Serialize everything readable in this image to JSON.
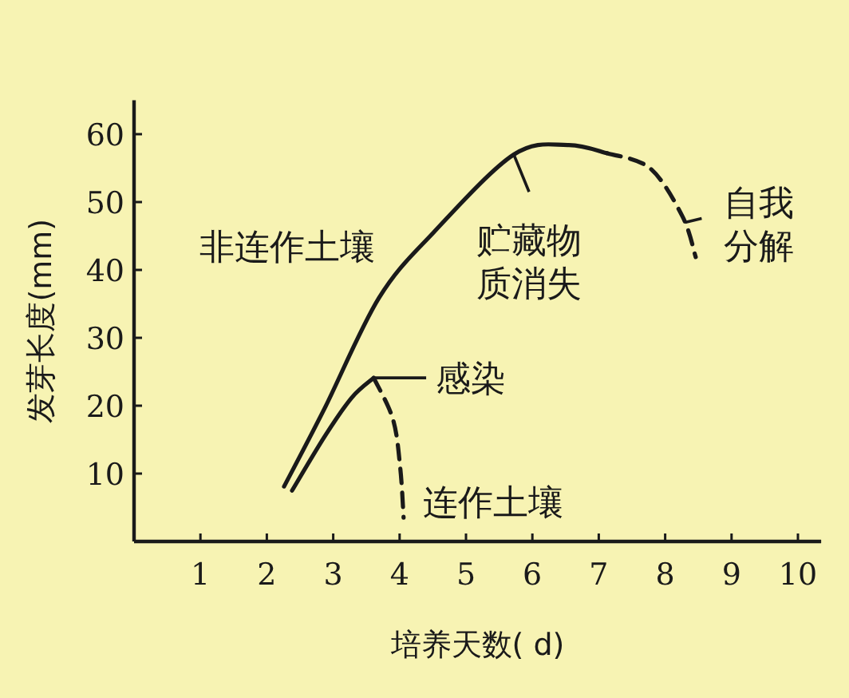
{
  "chart_data": {
    "type": "line",
    "xlabel": "培养天数( d)",
    "ylabel": "发芽长度(mm)",
    "xlim": [
      0,
      10.35
    ],
    "ylim": [
      0,
      65
    ],
    "xticks": [
      1,
      2,
      3,
      4,
      5,
      6,
      7,
      8,
      9,
      10
    ],
    "yticks": [
      10,
      20,
      30,
      40,
      50,
      60
    ],
    "grid": false,
    "series": [
      {
        "name": "非连作土壤",
        "color": "#1a1a1a",
        "line_style": "solid",
        "x": [
          2.26,
          2.87,
          3.69,
          4.51,
          5.72,
          6.54,
          7.12
        ],
        "values": [
          8.1,
          19.6,
          35.9,
          45.5,
          57,
          58.4,
          57.2
        ]
      },
      {
        "color": "#1a1a1a",
        "line_style": "dashed",
        "x": [
          7.12,
          7.77,
          8.26,
          8.46
        ],
        "values": [
          57.2,
          55,
          47.9,
          41.9
        ]
      },
      {
        "color": "#1a1a1a",
        "line_style": "solid",
        "x": [
          2.38,
          2.88,
          3.28,
          3.61
        ],
        "values": [
          7.5,
          15.6,
          21.2,
          24.1
        ]
      },
      {
        "name": "连作土壤",
        "color": "#1a1a1a",
        "line_style": "dashed",
        "x": [
          3.61,
          3.9,
          4.01,
          4.06
        ],
        "values": [
          24.1,
          18,
          10.8,
          3.5
        ]
      }
    ],
    "annotations": [
      {
        "text": "感染",
        "x": 3.61,
        "y": 24.1
      },
      {
        "text": "贮藏物质消失",
        "x": 5.72,
        "y": 57
      },
      {
        "text": "自我分解",
        "x": 8.3,
        "y": 47
      }
    ]
  }
}
